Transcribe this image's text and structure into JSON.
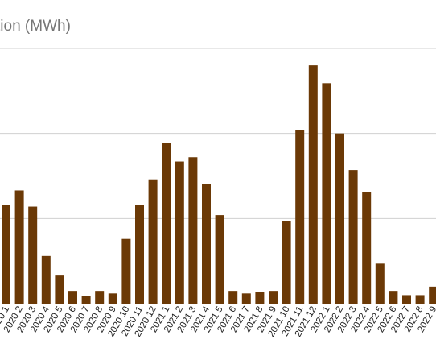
{
  "chart_data": {
    "type": "bar",
    "title": "tion (MWh)",
    "xlabel": "",
    "ylabel": "",
    "ylim": [
      0,
      300
    ],
    "yticks": [
      0,
      100,
      200,
      300
    ],
    "grid": true,
    "legend": "none",
    "bar_color": "#6b3906",
    "categories": [
      "2020 1",
      "2020 2",
      "2020 3",
      "2020 4",
      "2020 5",
      "2020 6",
      "2020 7",
      "2020 8",
      "2020 9",
      "2020 10",
      "2020 11",
      "2020 12",
      "2021 1",
      "2021 2",
      "2021 3",
      "2021 4",
      "2021 5",
      "2021 6",
      "2021 7",
      "2021 8",
      "2021 9",
      "2021 10",
      "2021 11",
      "2021 12",
      "2022 1",
      "2022 2",
      "2022 3",
      "2022 4",
      "2022 5",
      "2022 6",
      "2022 7",
      "2022 8",
      "2022 9"
    ],
    "values": [
      116,
      133,
      114,
      56,
      33,
      15,
      9,
      15,
      12,
      76,
      116,
      146,
      189,
      167,
      172,
      141,
      104,
      15,
      12,
      14,
      15,
      97,
      204,
      280,
      259,
      200,
      157,
      131,
      47,
      15,
      10,
      10,
      20
    ]
  }
}
